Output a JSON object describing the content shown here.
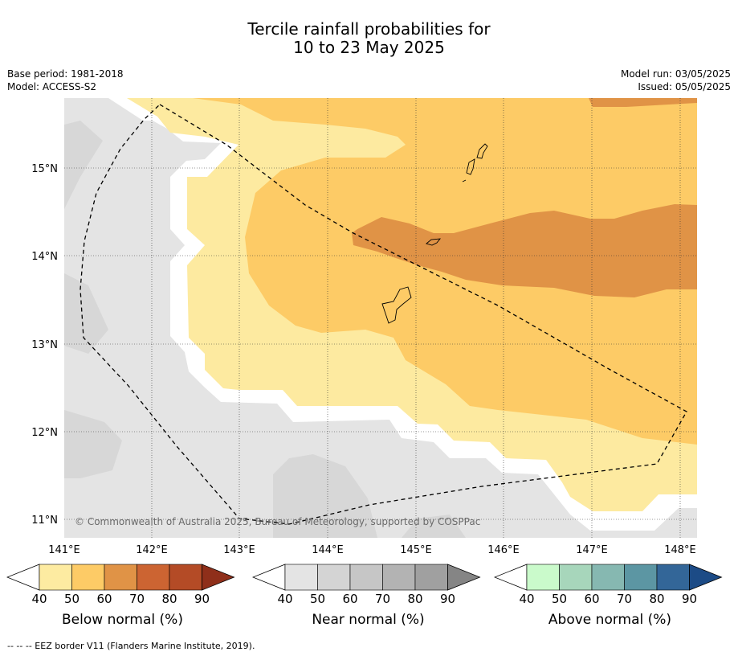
{
  "title": {
    "line1": "Tercile rainfall probabilities for",
    "line2": "10 to 23 May 2025"
  },
  "meta": {
    "base_period": "Base period: 1981-2018",
    "model": "Model: ACCESS-S2",
    "model_run": "Model run: 03/05/2025",
    "issued": "Issued: 05/05/2025"
  },
  "map": {
    "lat_labels": [
      "15°N",
      "14°N",
      "13°N",
      "12°N",
      "11°N"
    ],
    "lon_labels": [
      "141°E",
      "142°E",
      "143°E",
      "144°E",
      "145°E",
      "146°E",
      "147°E",
      "148°E"
    ],
    "watermark": "© Commonwealth of Australia 2025, Bureau of Meteorology, supported by COSPPac",
    "colors": {
      "near_40_50": "#e4e4e4",
      "near_50_60": "#d7d7d7",
      "below_40_50": "#fdeaa0",
      "below_50_60": "#fdcb66",
      "below_60_70": "#e09346",
      "no_data": "#ffffff"
    }
  },
  "colorbars": [
    {
      "id": "below",
      "label": "Below normal (%)",
      "ticks": [
        "40",
        "50",
        "60",
        "70",
        "80",
        "90"
      ],
      "colors": [
        "#fdeba1",
        "#fdcb66",
        "#e09346",
        "#cc6432",
        "#b44b26",
        "#8f2f1a"
      ]
    },
    {
      "id": "near",
      "label": "Near normal (%)",
      "ticks": [
        "40",
        "50",
        "60",
        "70",
        "80",
        "90"
      ],
      "colors": [
        "#e4e4e4",
        "#d4d4d4",
        "#c6c6c6",
        "#b3b3b3",
        "#a0a0a0",
        "#858585"
      ]
    },
    {
      "id": "above",
      "label": "Above normal (%)",
      "ticks": [
        "40",
        "50",
        "60",
        "70",
        "80",
        "90"
      ],
      "colors": [
        "#cafacb",
        "#a7d6bb",
        "#86b8b1",
        "#5c96a3",
        "#336698",
        "#1c4b86"
      ]
    }
  ],
  "footnote": "--  --  -- EEZ border V11 (Flanders Marine Institute, 2019)."
}
